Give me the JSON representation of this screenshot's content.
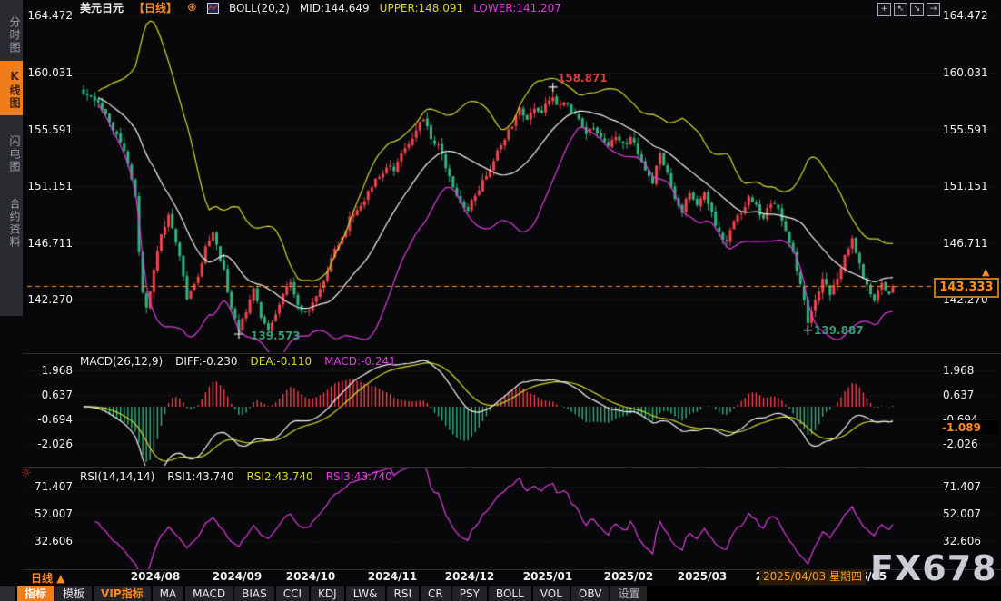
{
  "header": {
    "symbol": "美元日元",
    "period_tag": "【日线】",
    "plus_icon": "⊕",
    "boll_label": "BOLL(20,2)",
    "mid_label": "MID:144.649",
    "upper_label": "UPPER:148.091",
    "lower_label": "LOWER:141.207"
  },
  "tool_icons": [
    {
      "name": "crosshair-icon",
      "glyph": "+"
    },
    {
      "name": "scale-up-icon",
      "glyph": "↖"
    },
    {
      "name": "scale-down-icon",
      "glyph": "↘"
    },
    {
      "name": "pan-right-icon",
      "glyph": "→"
    }
  ],
  "sidebar": {
    "items": [
      {
        "label": "分时图",
        "active": false
      },
      {
        "label": "K线图",
        "active": true
      },
      {
        "label": "闪电图",
        "active": false
      },
      {
        "label": "合约资料",
        "active": false
      }
    ]
  },
  "main": {
    "ticks": [
      "164.472",
      "160.031",
      "155.591",
      "151.151",
      "146.711",
      "142.270"
    ],
    "high_label": "158.871",
    "low1_label": "139.573",
    "low2_label": "139.887",
    "last_price_label": "143.333",
    "arrow_up": "▲"
  },
  "macd": {
    "title": "MACD(26,12,9)",
    "diff_label": "DIFF:-0.230",
    "dea_label": "DEA:-0.110",
    "macd_label": "MACD:-0.241",
    "ticks": [
      "1.968",
      "0.637",
      "-0.694",
      "-2.026"
    ],
    "current_label": "-1.089"
  },
  "rsi": {
    "title": "RSI(14,14,14)",
    "rsi1_label": "RSI1:43.740",
    "rsi2_label": "RSI2:43.740",
    "rsi3_label": "RSI3:43.740",
    "ticks": [
      "71.407",
      "52.007",
      "32.606"
    ],
    "sun_icon": "☼"
  },
  "xaxis": {
    "period_label": "日线 ▲",
    "months": [
      "2024/08",
      "2024/09",
      "2024/10",
      "2024/11",
      "2024/12",
      "2025/01",
      "2025/02",
      "2025/03",
      "2025/04",
      "2025/05"
    ],
    "date_tooltip": "2025/04/03 星期四"
  },
  "toolbar": {
    "items": [
      "指标",
      "模板",
      "VIP指标",
      "MA",
      "MACD",
      "BIAS",
      "CCI",
      "KDJ",
      "LW&",
      "RSI",
      "CR",
      "PSY",
      "BOLL",
      "VOL",
      "OBV",
      "设置"
    ]
  },
  "watermark": {
    "text": "FX678"
  },
  "colors": {
    "accent": "#ff8a1e",
    "accent_bg": "#ef7d1c",
    "candle_up": "#f2444f",
    "candle_down": "#31b57e",
    "boll_mid": "#f2f2f2",
    "boll_upper": "#d3d824",
    "boll_lower": "#e03ce0",
    "diff_line": "#f2f2f2",
    "dea_line": "#d3d824",
    "rsi_line": "#e03ce0",
    "annotation_high": "#d04040",
    "annotation_low": "#2f9e77",
    "grid": "rgba(175,175,185,0.26)",
    "grid_vertical": "rgba(175,175,185,0.07)",
    "cross": "#eeeeee"
  },
  "chart_data": {
    "type": "candlestick",
    "symbol": "美元日元",
    "period": "日线",
    "candle_count": 220,
    "seed": 987654,
    "close_keypoints": [
      [
        0,
        158.5
      ],
      [
        3,
        157.9
      ],
      [
        6,
        156.6
      ],
      [
        9,
        155.0
      ],
      [
        12,
        153.0
      ],
      [
        14,
        150.5
      ],
      [
        15,
        146.0
      ],
      [
        16,
        143.0
      ],
      [
        17,
        141.8
      ],
      [
        19,
        144.5
      ],
      [
        21,
        147.5
      ],
      [
        23,
        148.8
      ],
      [
        26,
        145.5
      ],
      [
        28,
        142.5
      ],
      [
        31,
        144.0
      ],
      [
        33,
        146.5
      ],
      [
        35,
        147.4
      ],
      [
        38,
        144.5
      ],
      [
        40,
        141.5
      ],
      [
        42,
        140.0
      ],
      [
        44,
        141.2
      ],
      [
        46,
        143.3
      ],
      [
        48,
        141.0
      ],
      [
        50,
        139.9
      ],
      [
        52,
        141.0
      ],
      [
        54,
        142.8
      ],
      [
        56,
        143.5
      ],
      [
        58,
        142.0
      ],
      [
        60,
        141.2
      ],
      [
        62,
        142.0
      ],
      [
        64,
        143.3
      ],
      [
        66,
        144.5
      ],
      [
        68,
        146.2
      ],
      [
        70,
        147.3
      ],
      [
        72,
        148.5
      ],
      [
        74,
        149.3
      ],
      [
        76,
        150.0
      ],
      [
        78,
        151.2
      ],
      [
        80,
        152.0
      ],
      [
        82,
        152.7
      ],
      [
        84,
        152.3
      ],
      [
        86,
        153.6
      ],
      [
        88,
        154.3
      ],
      [
        90,
        155.6
      ],
      [
        92,
        156.4
      ],
      [
        94,
        155.0
      ],
      [
        96,
        154.2
      ],
      [
        98,
        152.8
      ],
      [
        100,
        151.0
      ],
      [
        102,
        150.0
      ],
      [
        104,
        149.3
      ],
      [
        106,
        150.4
      ],
      [
        108,
        151.5
      ],
      [
        110,
        152.6
      ],
      [
        112,
        153.7
      ],
      [
        114,
        154.8
      ],
      [
        116,
        156.0
      ],
      [
        118,
        157.1
      ],
      [
        120,
        156.4
      ],
      [
        122,
        157.3
      ],
      [
        124,
        157.0
      ],
      [
        126,
        157.9
      ],
      [
        127,
        158.3
      ],
      [
        128,
        157.6
      ],
      [
        130,
        157.9
      ],
      [
        132,
        157.0
      ],
      [
        134,
        156.2
      ],
      [
        136,
        155.3
      ],
      [
        138,
        155.9
      ],
      [
        140,
        155.0
      ],
      [
        142,
        154.2
      ],
      [
        144,
        155.1
      ],
      [
        146,
        154.3
      ],
      [
        148,
        155.0
      ],
      [
        150,
        153.8
      ],
      [
        152,
        152.6
      ],
      [
        154,
        151.5
      ],
      [
        156,
        153.5
      ],
      [
        158,
        152.0
      ],
      [
        160,
        150.4
      ],
      [
        162,
        149.0
      ],
      [
        164,
        150.8
      ],
      [
        166,
        149.6
      ],
      [
        168,
        150.7
      ],
      [
        170,
        149.0
      ],
      [
        172,
        147.5
      ],
      [
        174,
        146.8
      ],
      [
        176,
        148.2
      ],
      [
        178,
        149.1
      ],
      [
        180,
        150.2
      ],
      [
        182,
        149.5
      ],
      [
        184,
        148.6
      ],
      [
        186,
        149.8
      ],
      [
        188,
        149.2
      ],
      [
        190,
        147.6
      ],
      [
        192,
        145.8
      ],
      [
        194,
        143.5
      ],
      [
        196,
        140.5
      ],
      [
        198,
        142.0
      ],
      [
        200,
        143.8
      ],
      [
        202,
        142.6
      ],
      [
        204,
        144.0
      ],
      [
        206,
        145.8
      ],
      [
        208,
        147.0
      ],
      [
        210,
        145.0
      ],
      [
        212,
        143.2
      ],
      [
        214,
        142.4
      ],
      [
        216,
        143.6
      ],
      [
        218,
        142.9
      ],
      [
        219,
        143.333
      ]
    ],
    "panes": [
      {
        "name": "price",
        "indicator": "BOLL(20,2)",
        "boll_period": 20,
        "boll_mult": 2,
        "values": {
          "MID": 144.649,
          "UPPER": 148.091,
          "LOWER": 141.207
        },
        "yticks": [
          164.472,
          160.031,
          155.591,
          151.151,
          146.711,
          142.27
        ],
        "last_price": 143.333,
        "annotations": [
          {
            "index": 127,
            "price": 158.871,
            "type": "high"
          },
          {
            "index": 42,
            "price": 139.573,
            "type": "low"
          },
          {
            "index": 196,
            "price": 139.887,
            "type": "low"
          }
        ]
      },
      {
        "name": "macd",
        "indicator": "MACD(26,12,9)",
        "params": [
          26,
          12,
          9
        ],
        "values": {
          "DIFF": -0.23,
          "DEA": -0.11,
          "MACD": -0.241
        },
        "yticks": [
          1.968,
          0.637,
          -0.694,
          -2.026
        ],
        "current": -1.089
      },
      {
        "name": "rsi",
        "indicator": "RSI(14,14,14)",
        "params": [
          14,
          14,
          14
        ],
        "values": {
          "RSI1": 43.74,
          "RSI2": 43.74,
          "RSI3": 43.74
        },
        "yticks": [
          71.407,
          52.007,
          32.606
        ]
      }
    ],
    "x_axis": {
      "tick_labels": [
        "2024/08",
        "2024/09",
        "2024/10",
        "2024/11",
        "2024/12",
        "2025/01",
        "2025/02",
        "2025/03",
        "2025/04",
        "2025/05"
      ],
      "tick_indices": [
        20,
        42,
        62,
        84,
        105,
        126,
        148,
        168,
        189,
        211
      ],
      "crosshair_date": "2025/04/03 星期四"
    }
  }
}
